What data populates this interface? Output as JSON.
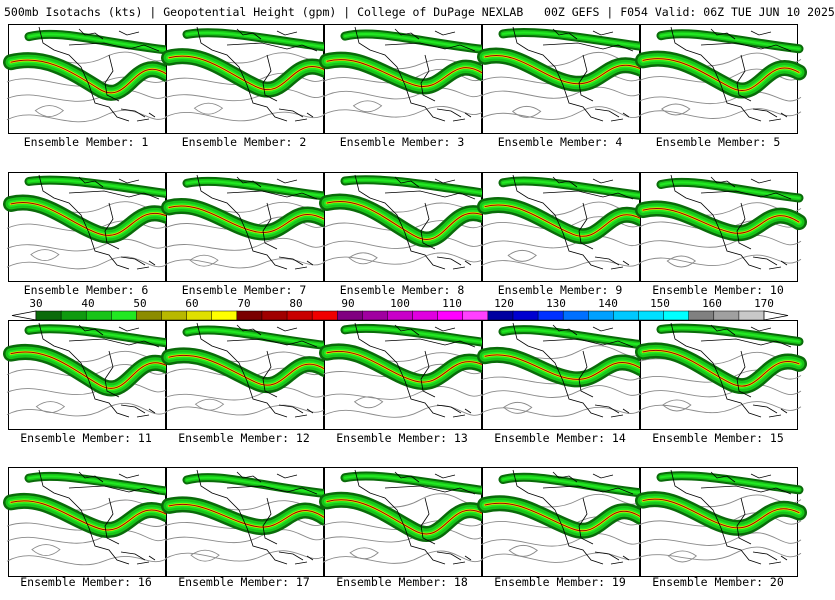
{
  "title": "500mb Isotachs (kts) | Geopotential Height (gpm) | College of DuPage NEXLAB   00Z GEFS | F054 Valid: 06Z TUE JUN 10 2025",
  "panels": [
    {
      "label": "Ensemble Member: 1"
    },
    {
      "label": "Ensemble Member: 2"
    },
    {
      "label": "Ensemble Member: 3"
    },
    {
      "label": "Ensemble Member: 4"
    },
    {
      "label": "Ensemble Member: 5"
    },
    {
      "label": "Ensemble Member: 6"
    },
    {
      "label": "Ensemble Member: 7"
    },
    {
      "label": "Ensemble Member: 8"
    },
    {
      "label": "Ensemble Member: 9"
    },
    {
      "label": "Ensemble Member: 10"
    },
    {
      "label": "Ensemble Member: 11"
    },
    {
      "label": "Ensemble Member: 12"
    },
    {
      "label": "Ensemble Member: 13"
    },
    {
      "label": "Ensemble Member: 14"
    },
    {
      "label": "Ensemble Member: 15"
    },
    {
      "label": "Ensemble Member: 16"
    },
    {
      "label": "Ensemble Member: 17"
    },
    {
      "label": "Ensemble Member: 18"
    },
    {
      "label": "Ensemble Member: 19"
    },
    {
      "label": "Ensemble Member: 20"
    }
  ],
  "colorbar": {
    "tick_labels": [
      "30",
      "40",
      "50",
      "60",
      "70",
      "80",
      "90",
      "100",
      "110",
      "120",
      "130",
      "140",
      "150",
      "160",
      "170"
    ],
    "colors": [
      "#0a6b0a",
      "#109a10",
      "#18c418",
      "#22e822",
      "#8c8c00",
      "#b8b800",
      "#e0e000",
      "#ffff00",
      "#7a0000",
      "#a00000",
      "#c80000",
      "#f00000",
      "#800080",
      "#a000a0",
      "#c800c8",
      "#e000e0",
      "#ff00ff",
      "#ff40ff",
      "#0000a0",
      "#0000d0",
      "#0030ff",
      "#0070ff",
      "#00a0ff",
      "#00c8ff",
      "#00e0ff",
      "#00ffff",
      "#808080",
      "#a0a0a0",
      "#c8c8c8"
    ]
  },
  "map_style": {
    "land_outline": "#000000",
    "height_contour": "#8a8a8a",
    "jet_shades": [
      "#0a6b0a",
      "#18c418",
      "#22e822",
      "#b8b800",
      "#e0e000",
      "#a00000"
    ]
  }
}
